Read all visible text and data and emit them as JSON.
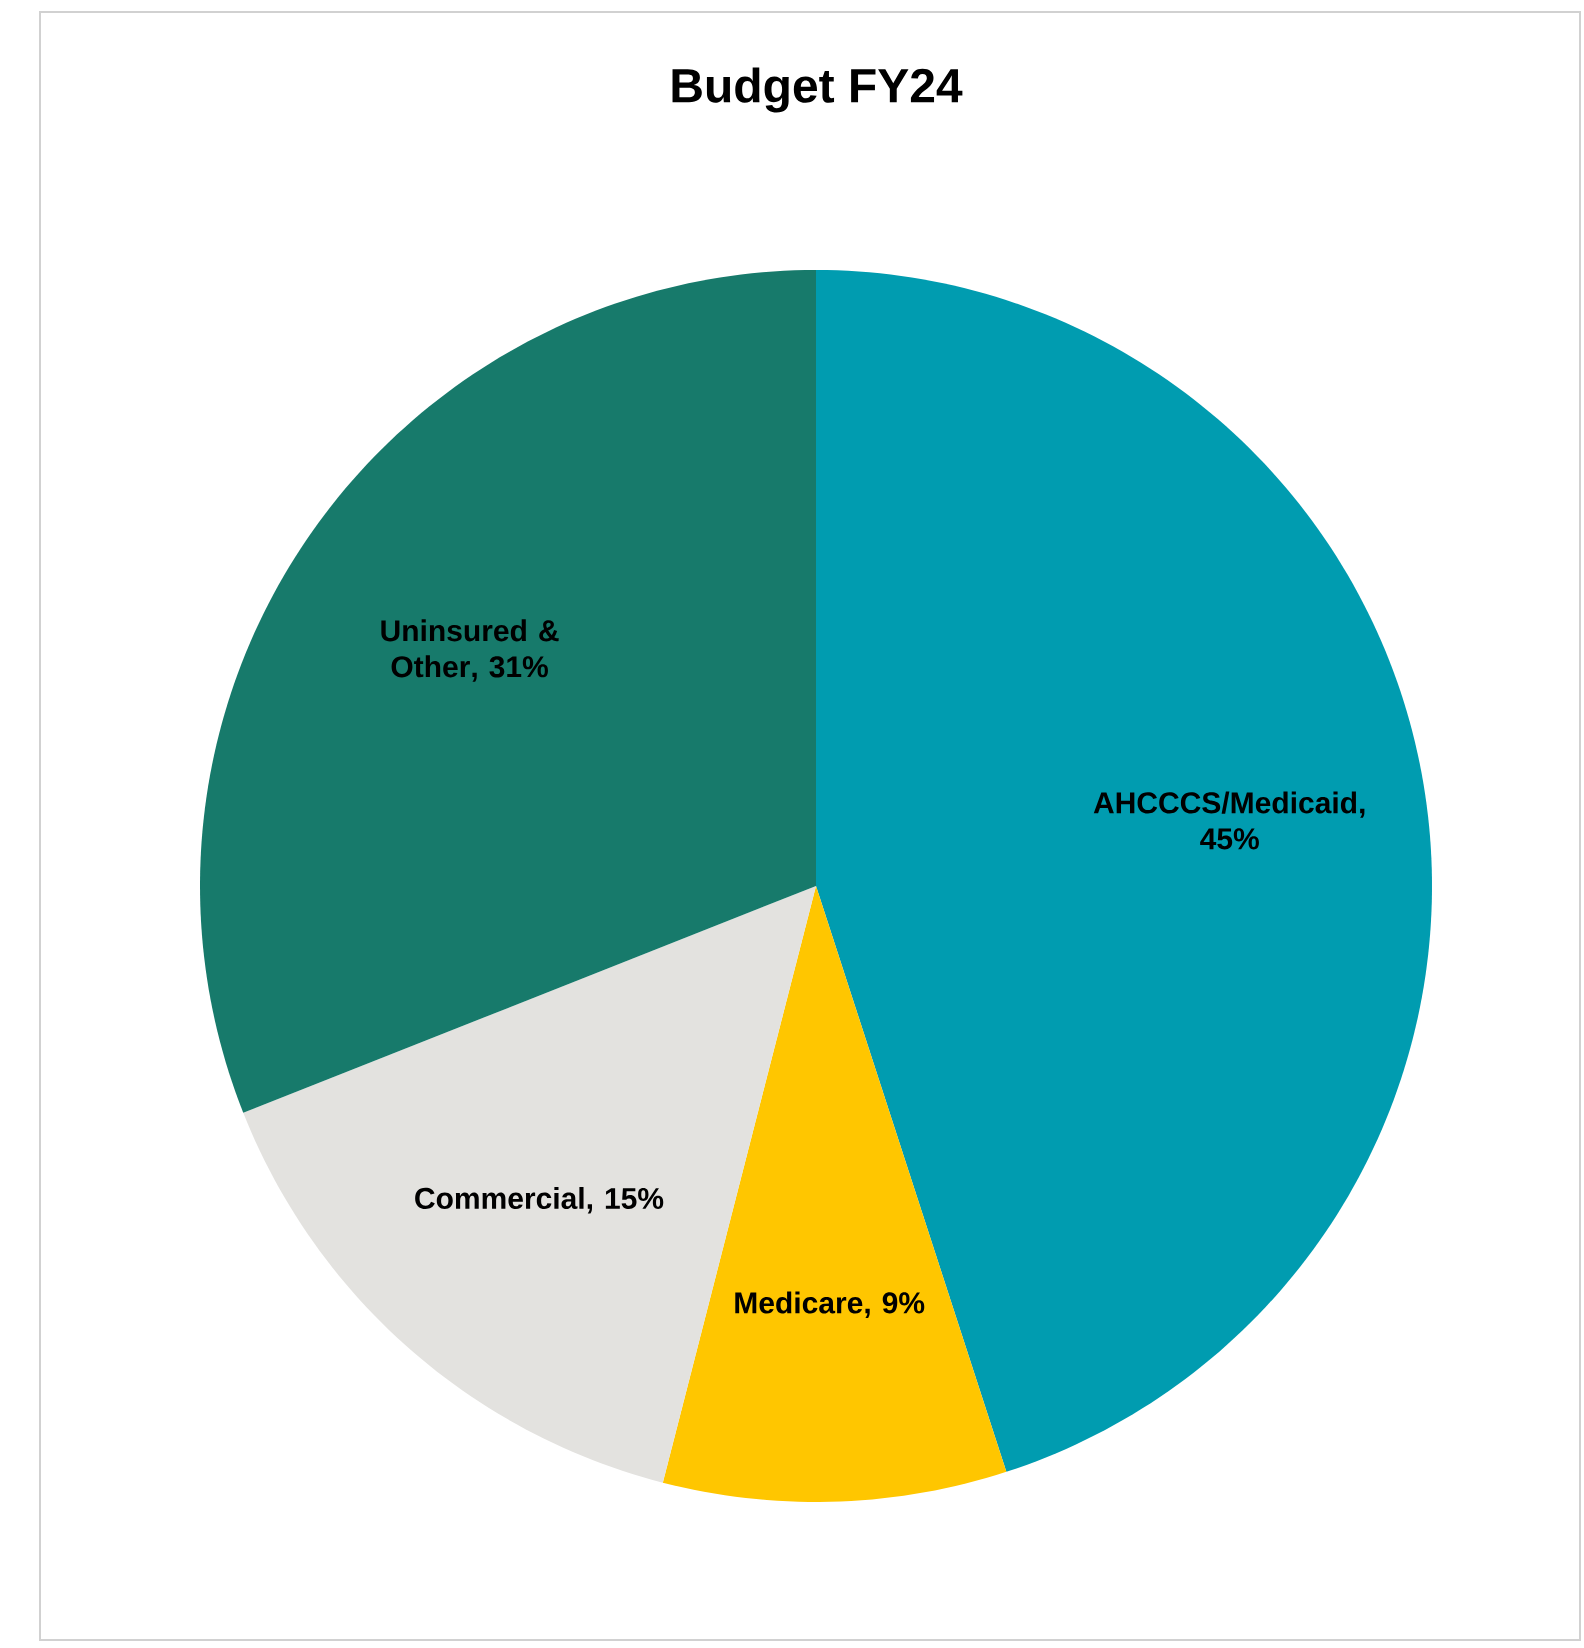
{
  "chart_data": {
    "type": "pie",
    "title": "Budget FY24",
    "categories": [
      "AHCCCS/Medicaid",
      "Medicare",
      "Commercial",
      "Uninsured & Other"
    ],
    "values": [
      45,
      9,
      15,
      31
    ],
    "value_labels": [
      ", 45%",
      ", 9%",
      ", 15%",
      ", 31%"
    ],
    "colors": [
      "#009cb0",
      "#ffc600",
      "#e3e2df",
      "#177a6b"
    ]
  }
}
